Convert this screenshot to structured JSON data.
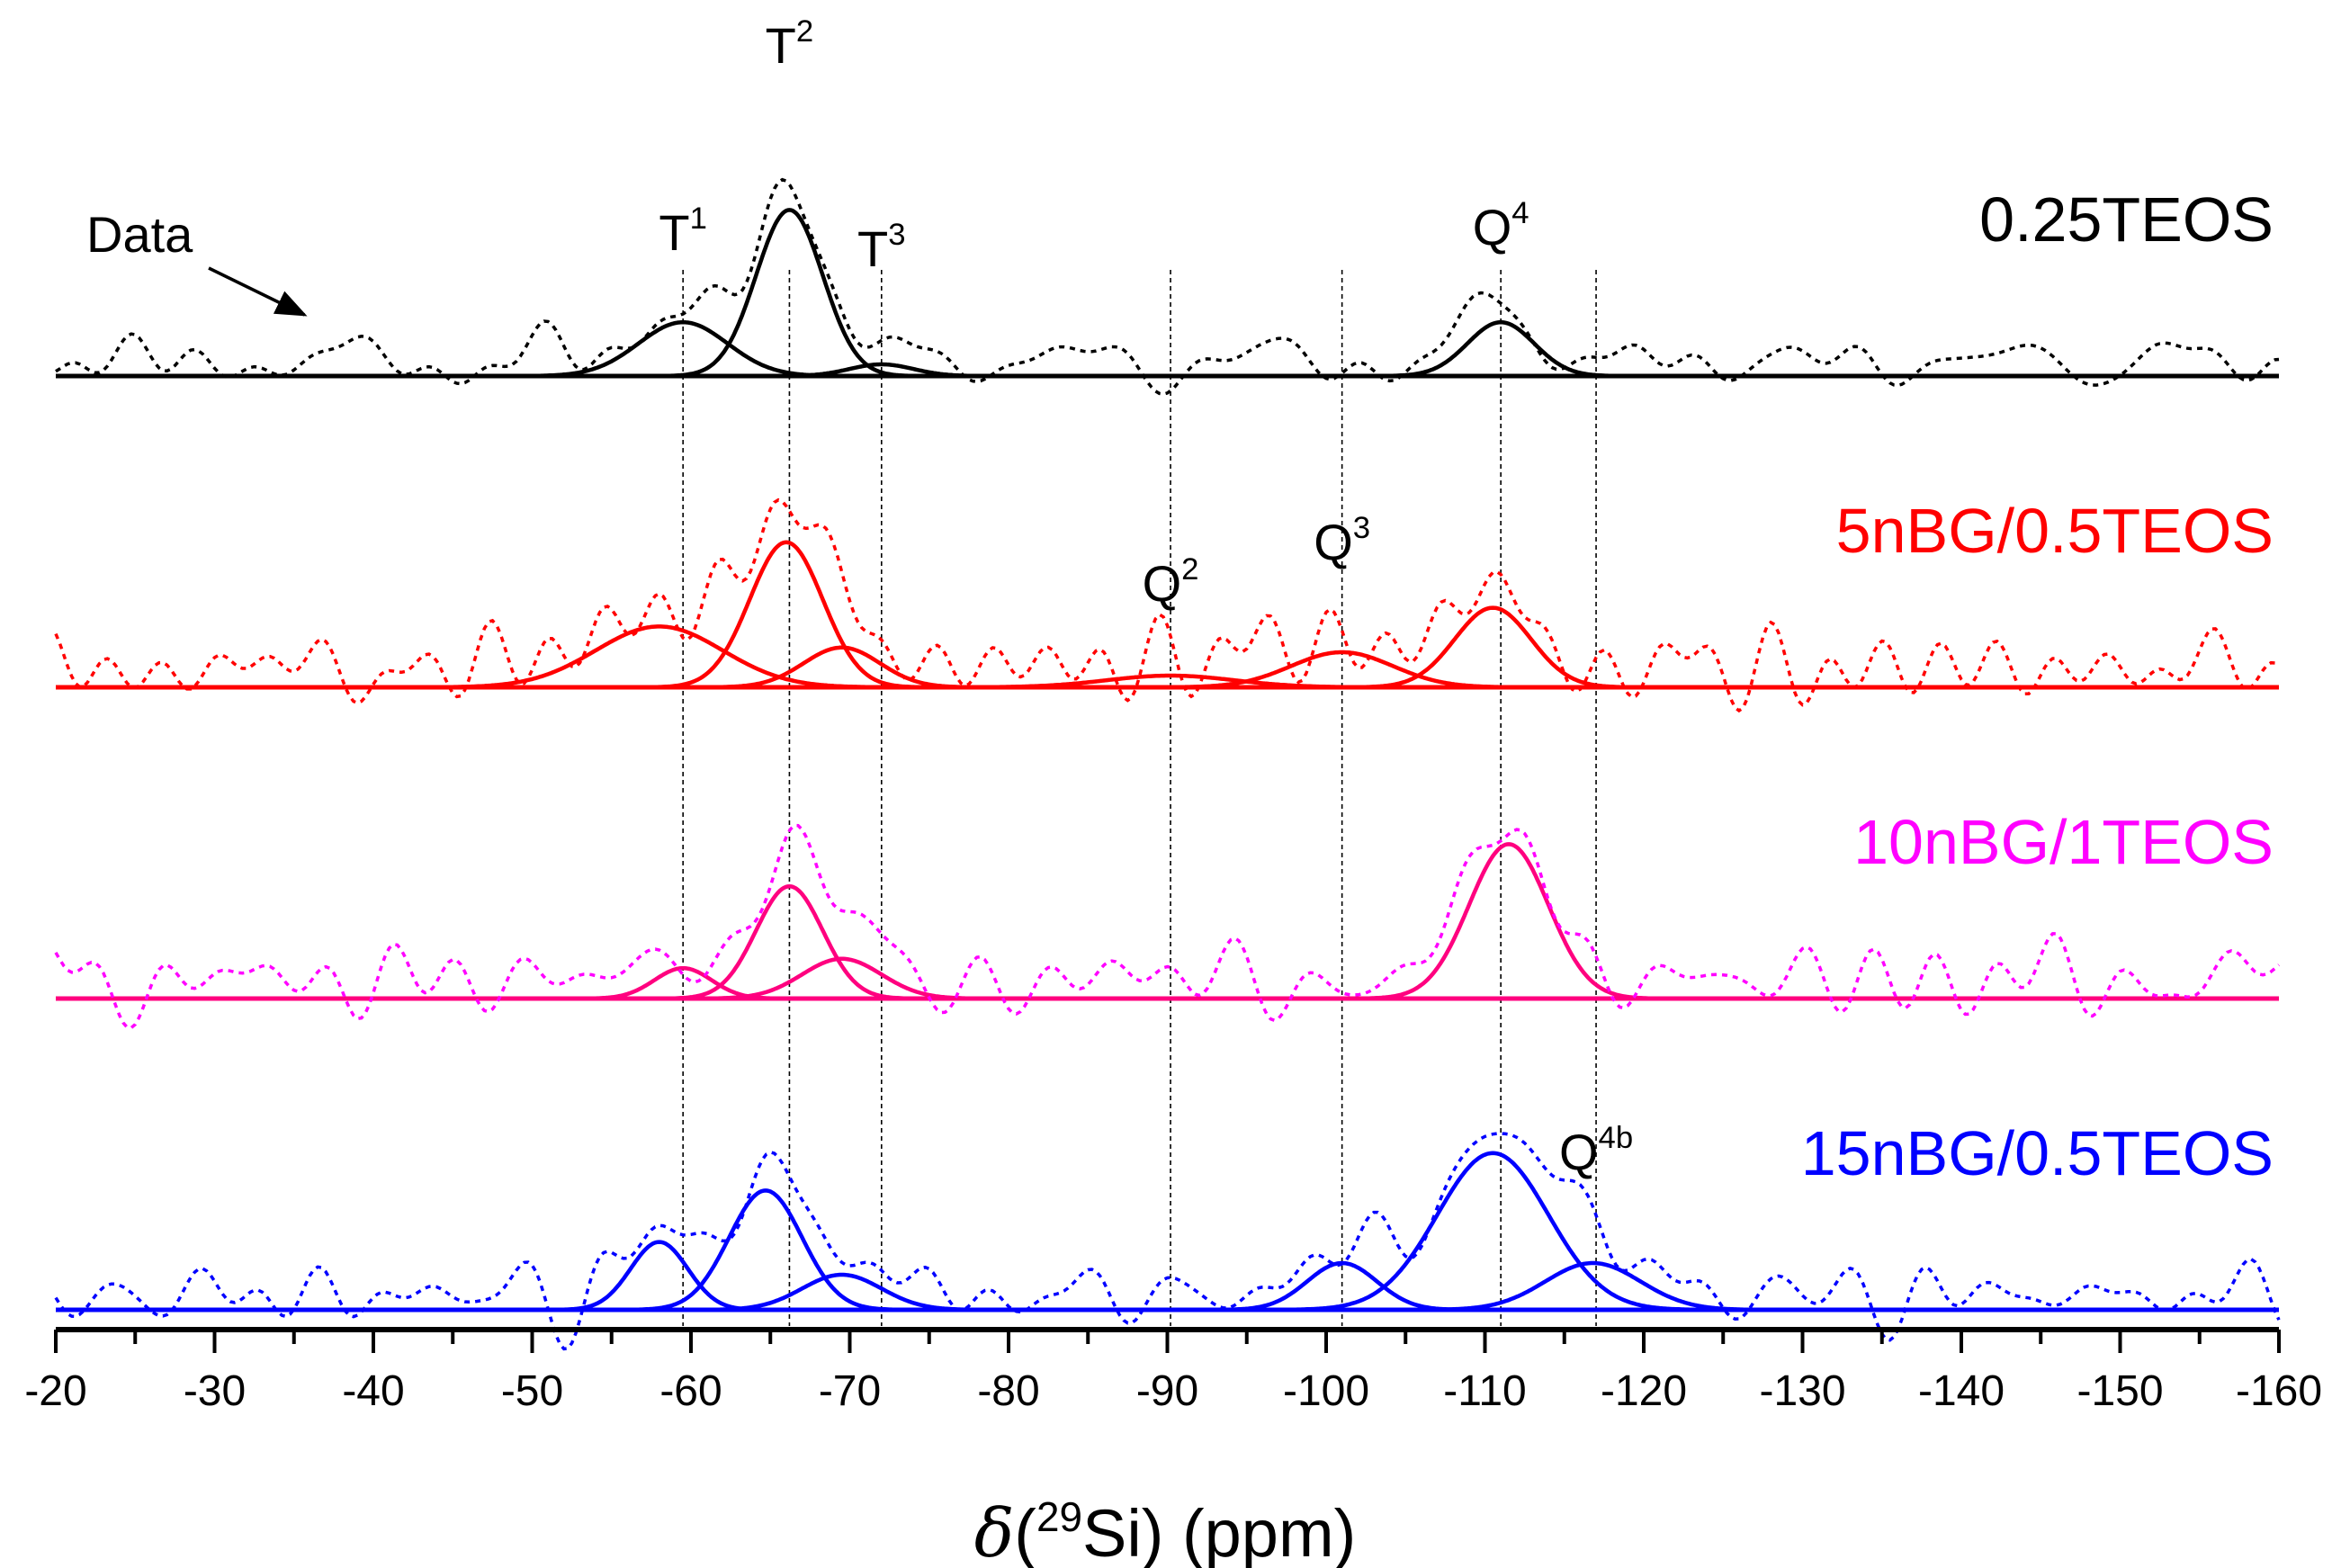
{
  "chart_data": {
    "type": "line",
    "title": "",
    "xlabel": "δ(29Si) (ppm)",
    "xlabel_parts": {
      "symbol": "δ",
      "open": "(",
      "isotope_mass": "29",
      "element": "Si",
      "close": ") (ppm)"
    },
    "ylabel": "",
    "xlim": [
      -20,
      -160
    ],
    "x_ticks": [
      -20,
      -30,
      -40,
      -50,
      -60,
      -70,
      -80,
      -90,
      -100,
      -110,
      -120,
      -130,
      -140,
      -150,
      -160
    ],
    "x_tick_labels": [
      "-20",
      "-30",
      "-40",
      "-50",
      "-60",
      "-70",
      "-80",
      "-90",
      "-100",
      "-110",
      "-120",
      "-130",
      "-140",
      "-150",
      "-160"
    ],
    "grid": false,
    "reference_lines": [
      -59.5,
      -66.2,
      -72.0,
      -90.2,
      -101.0,
      -111.0,
      -117.0
    ],
    "series": [
      {
        "name": "0.25TEOS",
        "color": "#000000",
        "fit_peaks": [
          {
            "center": -59.5,
            "amplitude": 0.23,
            "width": 2.8
          },
          {
            "center": -66.2,
            "amplitude": 0.71,
            "width": 2.1
          },
          {
            "center": -72.0,
            "amplitude": 0.05,
            "width": 2.0
          },
          {
            "center": -111.0,
            "amplitude": 0.23,
            "width": 2.1
          }
        ],
        "noise_level": 0.07
      },
      {
        "name": "5nBG/0.5TEOS",
        "color": "#ff0000",
        "fit_peaks": [
          {
            "center": -58.0,
            "amplitude": 0.26,
            "width": 4.0
          },
          {
            "center": -66.0,
            "amplitude": 0.62,
            "width": 2.3
          },
          {
            "center": -69.5,
            "amplitude": 0.17,
            "width": 2.4
          },
          {
            "center": -90.2,
            "amplitude": 0.05,
            "width": 4.0
          },
          {
            "center": -101.0,
            "amplitude": 0.15,
            "width": 3.2
          },
          {
            "center": -110.5,
            "amplitude": 0.34,
            "width": 2.4
          }
        ],
        "noise_level": 0.09
      },
      {
        "name": "10nBG/1TEOS",
        "color": "#ff00ff",
        "fit_color": "#ff007f",
        "fit_peaks": [
          {
            "center": -59.5,
            "amplitude": 0.13,
            "width": 1.8
          },
          {
            "center": -66.2,
            "amplitude": 0.48,
            "width": 2.1
          },
          {
            "center": -69.5,
            "amplitude": 0.17,
            "width": 2.5
          },
          {
            "center": -111.5,
            "amplitude": 0.66,
            "width": 2.5
          }
        ],
        "noise_level": 0.09
      },
      {
        "name": "15nBG/0.5TEOS",
        "color": "#0000ff",
        "fit_peaks": [
          {
            "center": -58.0,
            "amplitude": 0.29,
            "width": 1.8
          },
          {
            "center": -64.7,
            "amplitude": 0.51,
            "width": 2.3
          },
          {
            "center": -69.5,
            "amplitude": 0.15,
            "width": 2.5
          },
          {
            "center": -101.0,
            "amplitude": 0.2,
            "width": 2.2
          },
          {
            "center": -110.5,
            "amplitude": 0.67,
            "width": 3.5
          },
          {
            "center": -116.8,
            "amplitude": 0.2,
            "width": 3.0
          }
        ],
        "noise_level": 0.07
      }
    ],
    "peak_labels": [
      {
        "base": "T",
        "sup": "1",
        "x": -59.5,
        "series": 0
      },
      {
        "base": "T",
        "sup": "2",
        "x": -66.2,
        "series": 0
      },
      {
        "base": "T",
        "sup": "3",
        "x": -72.0,
        "series": 0
      },
      {
        "base": "Q",
        "sup": "4",
        "x": -111.0,
        "series": 0
      },
      {
        "base": "Q",
        "sup": "2",
        "x": -90.2,
        "series": 1
      },
      {
        "base": "Q",
        "sup": "3",
        "x": -101.0,
        "series": 1
      },
      {
        "base": "Q",
        "sup": "4b",
        "x": -117.0,
        "series": 3
      }
    ],
    "annotations": [
      {
        "text": "Data",
        "points_to_x": -36.0,
        "series": 0
      }
    ]
  }
}
